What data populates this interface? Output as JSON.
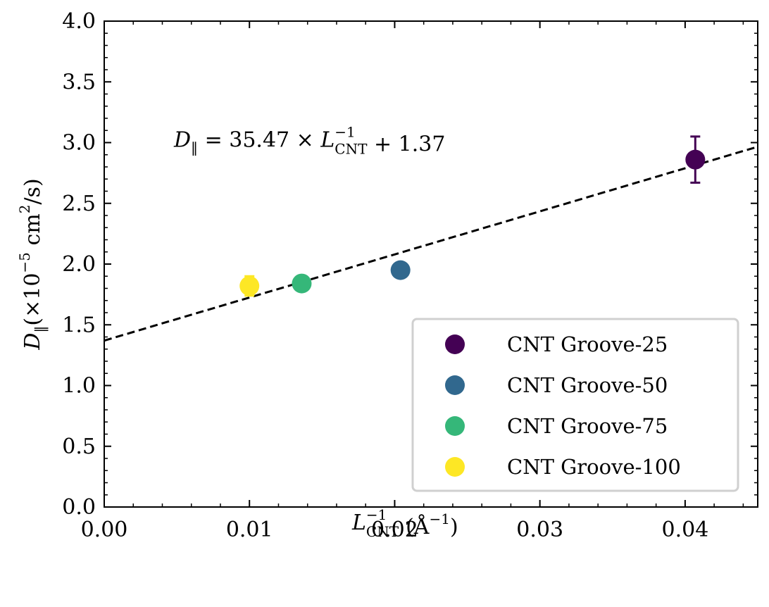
{
  "chart_data": {
    "type": "scatter",
    "xlabel": "L_CNT^-1 (Å^-1)",
    "xlabel_parts": {
      "main": "L",
      "sup": "−1",
      "sub": "CNT",
      "unit": "(Å",
      "unit_sup": "−1",
      "close": ")"
    },
    "ylabel": "D_‖(×10^-5 cm^2/s)",
    "ylabel_parts": {
      "main": "D",
      "sub": "‖",
      "a": "(×10",
      "sup1": "−5",
      "b": " cm",
      "sup2": "2",
      "c": "/s)"
    },
    "xlim": [
      0.0,
      0.045
    ],
    "ylim": [
      0.0,
      4.0
    ],
    "x_ticks": [
      0.0,
      0.01,
      0.02,
      0.03,
      0.04
    ],
    "x_tick_labels": [
      "0.00",
      "0.01",
      "0.02",
      "0.03",
      "0.04"
    ],
    "y_ticks": [
      0.0,
      0.5,
      1.0,
      1.5,
      2.0,
      2.5,
      3.0,
      3.5,
      4.0
    ],
    "y_tick_labels": [
      "0.0",
      "0.5",
      "1.0",
      "1.5",
      "2.0",
      "2.5",
      "3.0",
      "3.5",
      "4.0"
    ],
    "grid": false,
    "legend_position": "lower-right",
    "series": [
      {
        "name": "CNT Groove-25",
        "color": "#440154",
        "x": 0.0407,
        "y": 2.86,
        "yerr": 0.19
      },
      {
        "name": "CNT Groove-50",
        "color": "#31688e",
        "x": 0.0204,
        "y": 1.95,
        "yerr": 0.06
      },
      {
        "name": "CNT Groove-75",
        "color": "#35b779",
        "x": 0.0136,
        "y": 1.84,
        "yerr": 0.04
      },
      {
        "name": "CNT Groove-100",
        "color": "#fde725",
        "x": 0.01,
        "y": 1.82,
        "yerr": 0.08
      }
    ],
    "fit": {
      "slope": 35.47,
      "intercept": 1.37,
      "style": "dashed",
      "color": "#000000"
    },
    "annotation": {
      "text": "D_‖ = 35.47 × L_CNT^-1 + 1.37",
      "parts": {
        "d": "D",
        "d_sub": "‖",
        "mid": " = 35.47 × ",
        "l": "L",
        "l_sup": "−1",
        "l_sub": "CNT",
        "end": " + 1.37"
      },
      "x": 0.0048,
      "y": 3.0
    }
  }
}
